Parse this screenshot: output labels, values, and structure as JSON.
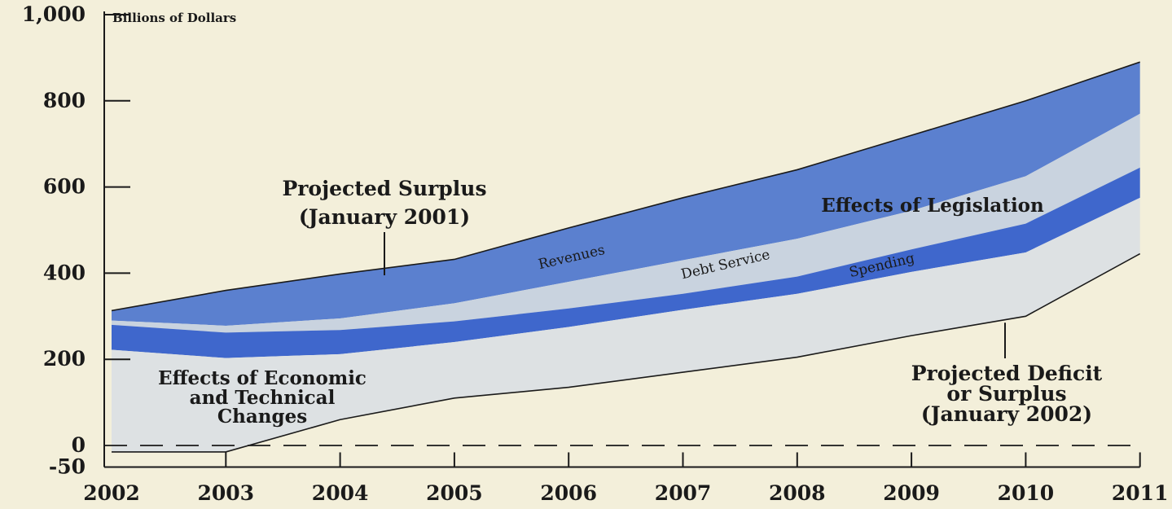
{
  "chart_data": {
    "type": "area",
    "ylabel": "Billions of Dollars",
    "ylim": [
      -50,
      1000
    ],
    "yticks": [
      {
        "value": 1000,
        "label": "1,000"
      },
      {
        "value": 800,
        "label": "800"
      },
      {
        "value": 600,
        "label": "600"
      },
      {
        "value": 400,
        "label": "400"
      },
      {
        "value": 200,
        "label": "200"
      },
      {
        "value": 0,
        "label": "0"
      },
      {
        "value": -50,
        "label": "-50"
      }
    ],
    "categories": [
      "2002",
      "2003",
      "2004",
      "2005",
      "2006",
      "2007",
      "2008",
      "2009",
      "2010",
      "2011"
    ],
    "boundaries": [
      {
        "key": "jan2001_surplus",
        "values": [
          313,
          360,
          398,
          432,
          505,
          575,
          640,
          720,
          800,
          890
        ]
      },
      {
        "key": "after_revenues",
        "values": [
          290,
          278,
          295,
          330,
          380,
          430,
          480,
          545,
          625,
          770
        ]
      },
      {
        "key": "after_debt_service",
        "values": [
          280,
          262,
          268,
          288,
          318,
          352,
          392,
          455,
          515,
          645
        ]
      },
      {
        "key": "after_spending",
        "values": [
          222,
          203,
          212,
          240,
          275,
          315,
          352,
          403,
          448,
          575
        ]
      },
      {
        "key": "jan2002_projection",
        "values": [
          -15,
          -15,
          60,
          110,
          135,
          170,
          205,
          255,
          300,
          445
        ]
      }
    ],
    "bands": [
      {
        "name": "Revenues",
        "color": "#5b80cf"
      },
      {
        "name": "Debt Service",
        "color": "#c9d3df"
      },
      {
        "name": "Spending",
        "color": "#3f67cc"
      },
      {
        "name": "Effects of Economic and Technical Changes",
        "color": "#dde1e3"
      }
    ],
    "annotations": {
      "jan2001": [
        "Projected Surplus",
        "(January 2001)"
      ],
      "legislation": "Effects of Legislation",
      "revenues": "Revenues",
      "debt_service": "Debt Service",
      "spending": "Spending",
      "economic": [
        "Effects of Economic",
        "and Technical",
        "Changes"
      ],
      "jan2002": [
        "Projected Deficit",
        "or Surplus",
        "(January 2002)"
      ]
    },
    "zero_line": "dashed",
    "grid": false
  }
}
